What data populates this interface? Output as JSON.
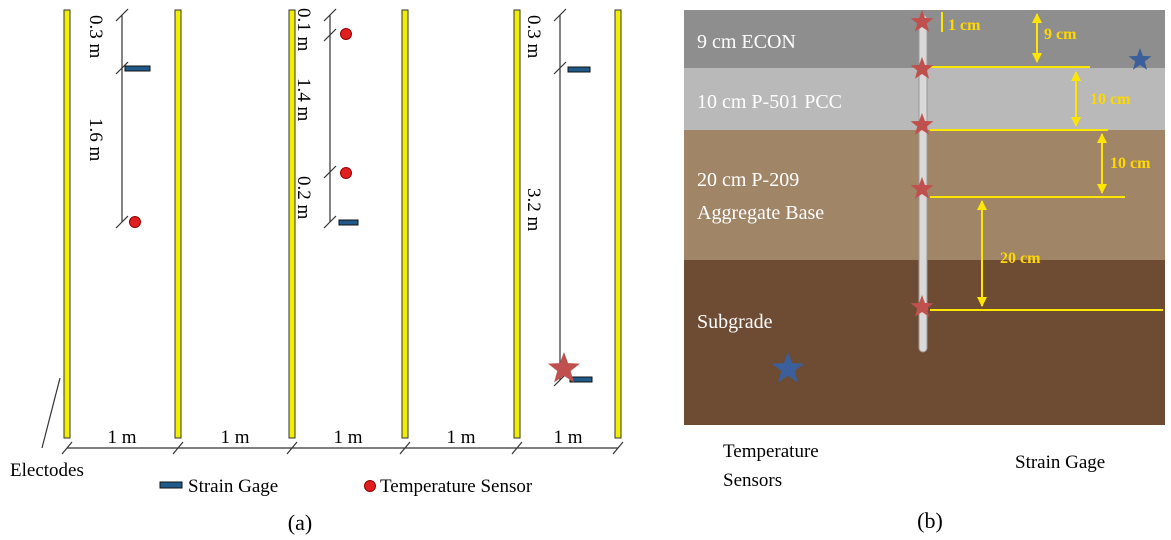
{
  "panel_a": {
    "dimensions": [
      "0.3 m",
      "1.6 m",
      "0.1 m",
      "1.4 m",
      "0.2 m",
      "0.3 m",
      "3.2 m"
    ],
    "spacings": [
      "1 m",
      "1 m",
      "1 m",
      "1 m",
      "1 m"
    ],
    "electrodes_label": "Electodes",
    "legend": {
      "strain_gage": "Strain Gage",
      "temperature_sensor": "Temperature Sensor"
    },
    "caption": "(a)"
  },
  "panel_b": {
    "layer_labels": [
      "9 cm ECON",
      "10 cm P-501 PCC",
      "20 cm P-209",
      "Aggregate Base",
      "Subgrade"
    ],
    "depth_labels": [
      "1 cm",
      "9 cm",
      "10 cm",
      "10 cm",
      "20 cm"
    ],
    "legend": {
      "temperature_sensors": [
        "Temperature",
        "Sensors"
      ],
      "strain_gage": "Strain Gage"
    },
    "caption": "(b)"
  }
}
